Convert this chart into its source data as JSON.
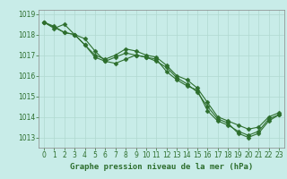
{
  "series": [
    {
      "x": [
        0,
        1,
        2,
        3,
        4,
        5,
        6,
        7,
        8,
        9,
        10,
        11,
        12,
        13,
        14,
        15,
        16,
        17,
        18,
        19,
        20,
        21,
        22,
        23
      ],
      "y": [
        1018.6,
        1018.3,
        1018.5,
        1018.0,
        1017.5,
        1016.9,
        1016.7,
        1016.9,
        1017.1,
        1017.0,
        1016.9,
        1016.8,
        1016.2,
        1015.8,
        1015.5,
        1015.3,
        1014.3,
        1013.8,
        1013.6,
        1013.3,
        1013.1,
        1013.3,
        1013.9,
        1014.1
      ]
    },
    {
      "x": [
        0,
        1,
        2,
        3,
        4,
        5,
        6,
        7,
        8,
        9,
        10,
        11,
        12,
        13,
        14,
        15,
        16,
        17,
        18,
        19,
        20,
        21,
        22,
        23
      ],
      "y": [
        1018.6,
        1018.4,
        1018.1,
        1018.0,
        1017.5,
        1017.0,
        1016.8,
        1017.0,
        1017.3,
        1017.2,
        1017.0,
        1016.9,
        1016.5,
        1016.0,
        1015.8,
        1015.4,
        1014.7,
        1014.0,
        1013.8,
        1013.6,
        1013.4,
        1013.5,
        1014.0,
        1014.2
      ]
    },
    {
      "x": [
        0,
        2,
        3,
        4,
        5,
        6,
        7,
        8,
        9,
        10,
        11,
        12,
        13,
        14,
        15,
        16,
        17,
        18,
        19,
        20,
        21,
        22,
        23
      ],
      "y": [
        1018.6,
        1018.1,
        1018.0,
        1017.8,
        1017.2,
        1016.7,
        1016.6,
        1016.8,
        1017.0,
        1016.9,
        1016.7,
        1016.4,
        1015.9,
        1015.6,
        1015.2,
        1014.5,
        1013.9,
        1013.7,
        1013.2,
        1013.0,
        1013.2,
        1013.8,
        1014.1
      ]
    }
  ],
  "line_color": "#2d6e2d",
  "marker": "D",
  "markersize": 2.5,
  "linewidth": 0.8,
  "xlim": [
    -0.5,
    23.5
  ],
  "ylim": [
    1012.5,
    1019.2
  ],
  "yticks": [
    1013,
    1014,
    1015,
    1016,
    1017,
    1018,
    1019
  ],
  "xticks": [
    0,
    1,
    2,
    3,
    4,
    5,
    6,
    7,
    8,
    9,
    10,
    11,
    12,
    13,
    14,
    15,
    16,
    17,
    18,
    19,
    20,
    21,
    22,
    23
  ],
  "xlabel": "Graphe pression niveau de la mer (hPa)",
  "bg_color": "#c8ece8",
  "grid_color": "#b0d8d0",
  "axis_color": "#666666",
  "tick_color": "#2d6e2d",
  "label_color": "#2d6e2d",
  "xlabel_fontsize": 6.5,
  "tick_fontsize": 5.5
}
